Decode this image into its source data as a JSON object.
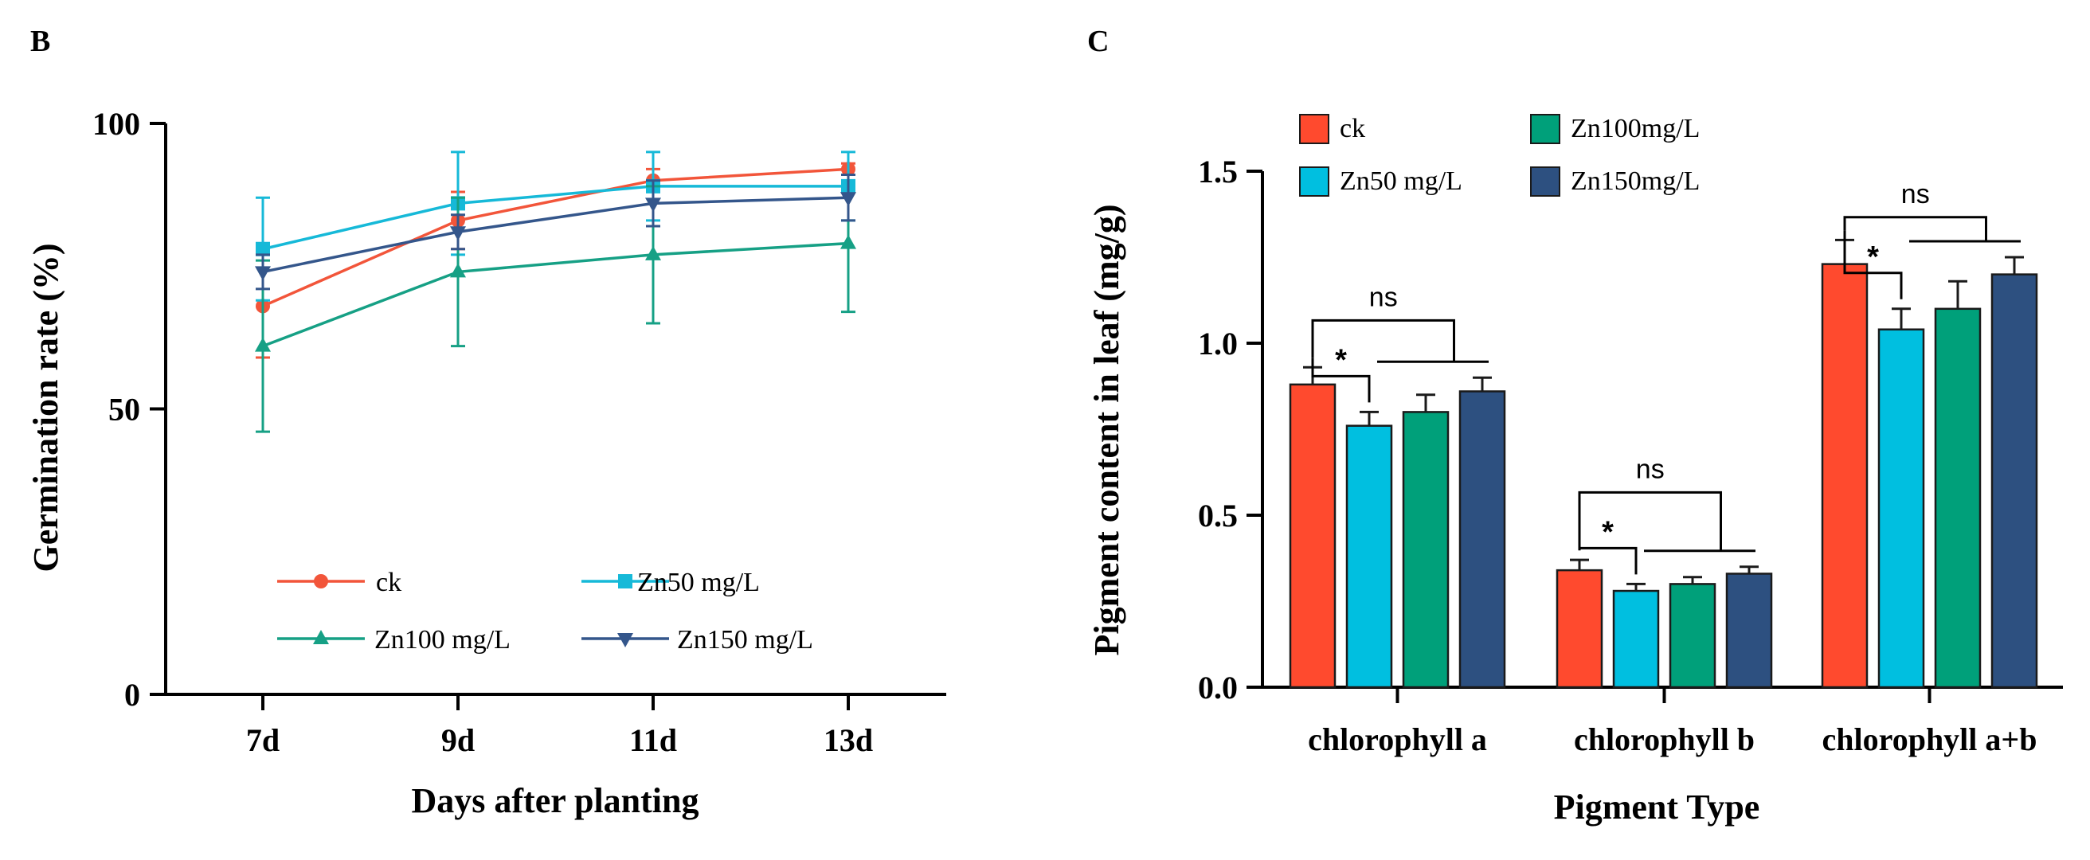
{
  "colors": {
    "ck": "#F2553A",
    "zn50": "#16B9D8",
    "zn100": "#16A085",
    "zn150": "#34568B",
    "ck_bar": "#FF4A2E",
    "zn50_bar": "#00BFE0",
    "zn100_bar": "#00A07A",
    "zn150_bar": "#2D5080"
  },
  "panel_b": {
    "letter": "B",
    "chart_data": {
      "type": "line",
      "categories": [
        "7d",
        "9d",
        "11d",
        "13d"
      ],
      "xlabel": "Days after planting",
      "ylabel": "Germination rate (%)",
      "ylim": [
        0,
        100
      ],
      "yticks": [
        "0",
        "50",
        "100"
      ],
      "series": [
        {
          "name": "ck",
          "color_key": "ck",
          "marker": "circle",
          "values": [
            68,
            83,
            90,
            92
          ],
          "errors": [
            9,
            5,
            2,
            1
          ]
        },
        {
          "name": "Zn50 mg/L",
          "color_key": "zn50",
          "marker": "square",
          "values": [
            78,
            86,
            89,
            89
          ],
          "errors": [
            9,
            9,
            6,
            6
          ]
        },
        {
          "name": "Zn100 mg/L",
          "color_key": "zn100",
          "marker": "triangle-up",
          "values": [
            61,
            74,
            77,
            79
          ],
          "errors": [
            15,
            13,
            12,
            12
          ]
        },
        {
          "name": "Zn150 mg/L",
          "color_key": "zn150",
          "marker": "triangle-down",
          "values": [
            74,
            81,
            86,
            87
          ],
          "errors": [
            3,
            3,
            4,
            4
          ]
        }
      ],
      "legend_position": "lower-center"
    }
  },
  "panel_c": {
    "letter": "C",
    "chart_data": {
      "type": "bar",
      "categories": [
        "chlorophyll a",
        "chlorophyll b",
        "chlorophyll a+b"
      ],
      "xlabel": "Pigment Type",
      "ylabel": "Pigment content in leaf (mg/g)",
      "ylim": [
        0,
        1.5
      ],
      "yticks": [
        "0.0",
        "0.5",
        "1.0",
        "1.5"
      ],
      "series": [
        {
          "name": "ck",
          "color_key": "ck_bar",
          "values": [
            0.88,
            0.34,
            1.23
          ],
          "errors": [
            0.05,
            0.03,
            0.07
          ]
        },
        {
          "name": "Zn50 mg/L",
          "color_key": "zn50_bar",
          "values": [
            0.76,
            0.28,
            1.04
          ],
          "errors": [
            0.04,
            0.02,
            0.06
          ]
        },
        {
          "name": "Zn100mg/L",
          "color_key": "zn100_bar",
          "values": [
            0.8,
            0.3,
            1.1
          ],
          "errors": [
            0.05,
            0.02,
            0.08
          ]
        },
        {
          "name": "Zn150mg/L",
          "color_key": "zn150_bar",
          "values": [
            0.86,
            0.33,
            1.2
          ],
          "errors": [
            0.04,
            0.02,
            0.05
          ]
        }
      ],
      "legend_position": "top-left",
      "significance": [
        {
          "group": "chlorophyll a",
          "star": "*",
          "ns": "ns"
        },
        {
          "group": "chlorophyll b",
          "star": "*",
          "ns": "ns"
        },
        {
          "group": "chlorophyll a+b",
          "star": "*",
          "ns": "ns"
        }
      ]
    }
  }
}
